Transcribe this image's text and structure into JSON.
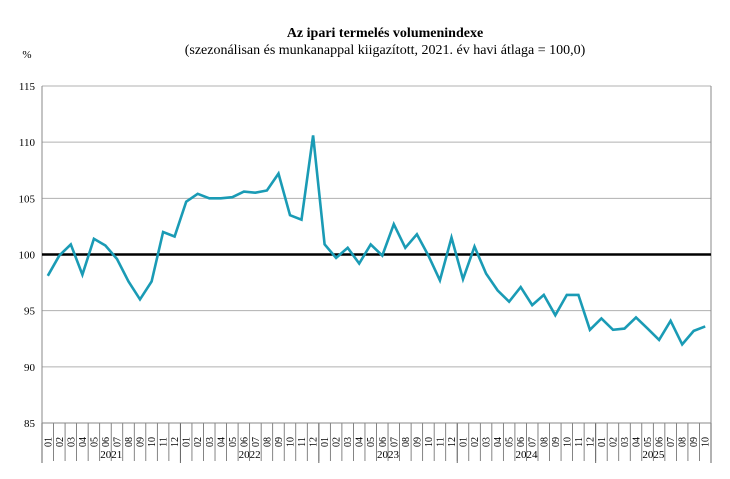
{
  "chart_data": {
    "type": "line",
    "title": "Az ipari termelés volumenindexe",
    "subtitle": "(szezonálisan és munkanappal kiigazított, 2021. év havi átlaga = 100,0)",
    "ylabel": "%",
    "ylim": [
      85,
      115
    ],
    "yticks": [
      85,
      90,
      95,
      100,
      105,
      110,
      115
    ],
    "grid": true,
    "reference_line": 100,
    "line_color": "#1a9bb5",
    "years": [
      {
        "label": "2021",
        "months": [
          "01",
          "02",
          "03",
          "04",
          "05",
          "06",
          "07",
          "08",
          "09",
          "10",
          "11",
          "12"
        ]
      },
      {
        "label": "2022",
        "months": [
          "01",
          "02",
          "03",
          "04",
          "05",
          "06",
          "07",
          "08",
          "09",
          "10",
          "11",
          "12"
        ]
      },
      {
        "label": "2023",
        "months": [
          "01",
          "02",
          "03",
          "04",
          "05",
          "06",
          "07",
          "08",
          "09",
          "10",
          "11",
          "12"
        ]
      },
      {
        "label": "2024",
        "months": [
          "01",
          "02",
          "03",
          "04",
          "05",
          "06",
          "07",
          "08",
          "09",
          "10",
          "11",
          "12"
        ]
      },
      {
        "label": "2025",
        "months": [
          "01",
          "02",
          "03",
          "04",
          "05",
          "06",
          "07",
          "08",
          "09",
          "10"
        ]
      }
    ],
    "values": [
      98.1,
      99.9,
      100.9,
      98.2,
      101.4,
      100.8,
      99.6,
      97.6,
      96.0,
      97.6,
      102.0,
      101.6,
      104.7,
      105.4,
      105.0,
      105.0,
      105.1,
      105.6,
      105.5,
      105.7,
      107.2,
      103.5,
      103.1,
      110.6,
      100.9,
      99.7,
      100.6,
      99.2,
      100.9,
      99.9,
      102.7,
      100.6,
      101.8,
      99.9,
      97.7,
      101.5,
      97.8,
      100.7,
      98.3,
      96.8,
      95.8,
      97.1,
      95.5,
      96.4,
      94.6,
      96.4,
      96.4,
      93.3,
      94.3,
      93.3,
      93.4,
      94.4,
      93.4,
      92.4,
      94.1,
      92.0,
      93.2,
      93.6
    ]
  }
}
